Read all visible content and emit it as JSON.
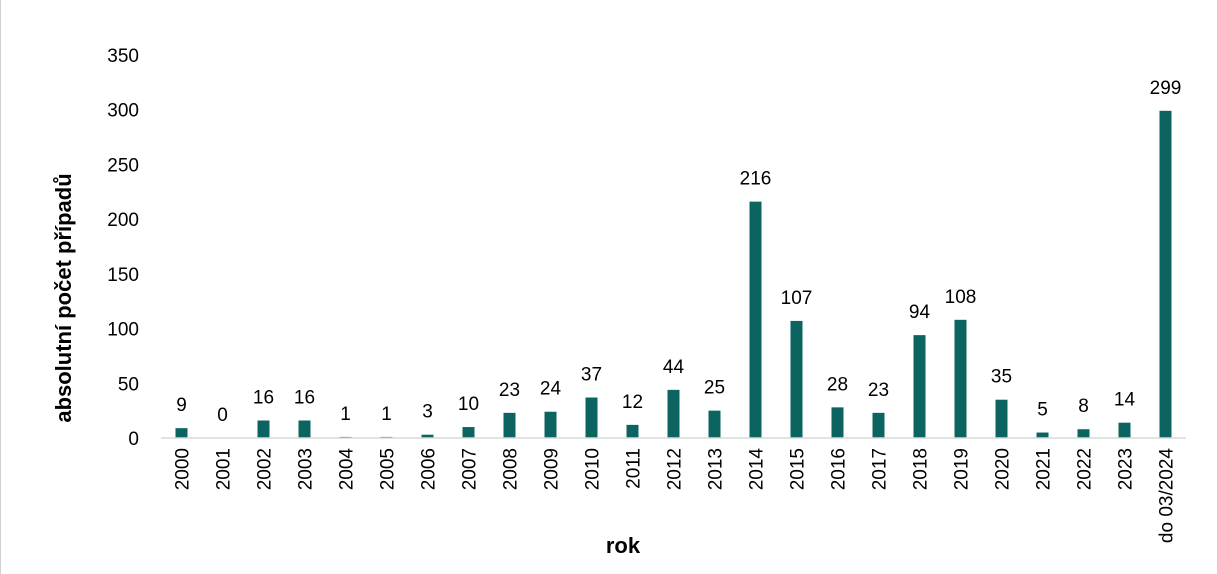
{
  "chart_data": {
    "type": "bar",
    "title": "",
    "xlabel": "rok",
    "ylabel": "absolutní počet případů",
    "ylim": [
      0,
      350
    ],
    "yticks": [
      "0",
      "50",
      "100",
      "150",
      "200",
      "250",
      "300",
      "350"
    ],
    "grid": false,
    "legend": "none",
    "bar_color": "#0b6460",
    "categories": [
      "2000",
      "2001",
      "2002",
      "2003",
      "2004",
      "2005",
      "2006",
      "2007",
      "2008",
      "2009",
      "2010",
      "2011",
      "2012",
      "2013",
      "2014",
      "2015",
      "2016",
      "2017",
      "2018",
      "2019",
      "2020",
      "2021",
      "2022",
      "2023",
      "do 03/2024"
    ],
    "values": [
      9,
      0,
      16,
      16,
      1,
      1,
      3,
      10,
      23,
      24,
      37,
      12,
      44,
      25,
      216,
      107,
      28,
      23,
      94,
      108,
      35,
      5,
      8,
      14,
      299
    ],
    "data_labels": [
      "9",
      "0",
      "16",
      "16",
      "1",
      "1",
      "3",
      "10",
      "23",
      "24",
      "37",
      "12",
      "44",
      "25",
      "216",
      "107",
      "28",
      "23",
      "94",
      "108",
      "35",
      "5",
      "8",
      "14",
      "299"
    ]
  }
}
